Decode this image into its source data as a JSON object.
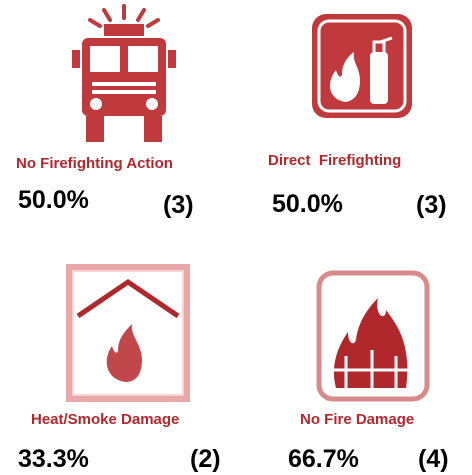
{
  "items": [
    {
      "label": "No Firefighting Action",
      "percent": "50.0%",
      "count": "(3)"
    },
    {
      "label": "Direct  Firefighting",
      "percent": "50.0%",
      "count": "(3)"
    },
    {
      "label": "Heat/Smoke Damage",
      "percent": "33.3%",
      "count": "(2)"
    },
    {
      "label": "No Fire Damage",
      "percent": "66.7%",
      "count": "(4)"
    }
  ]
}
